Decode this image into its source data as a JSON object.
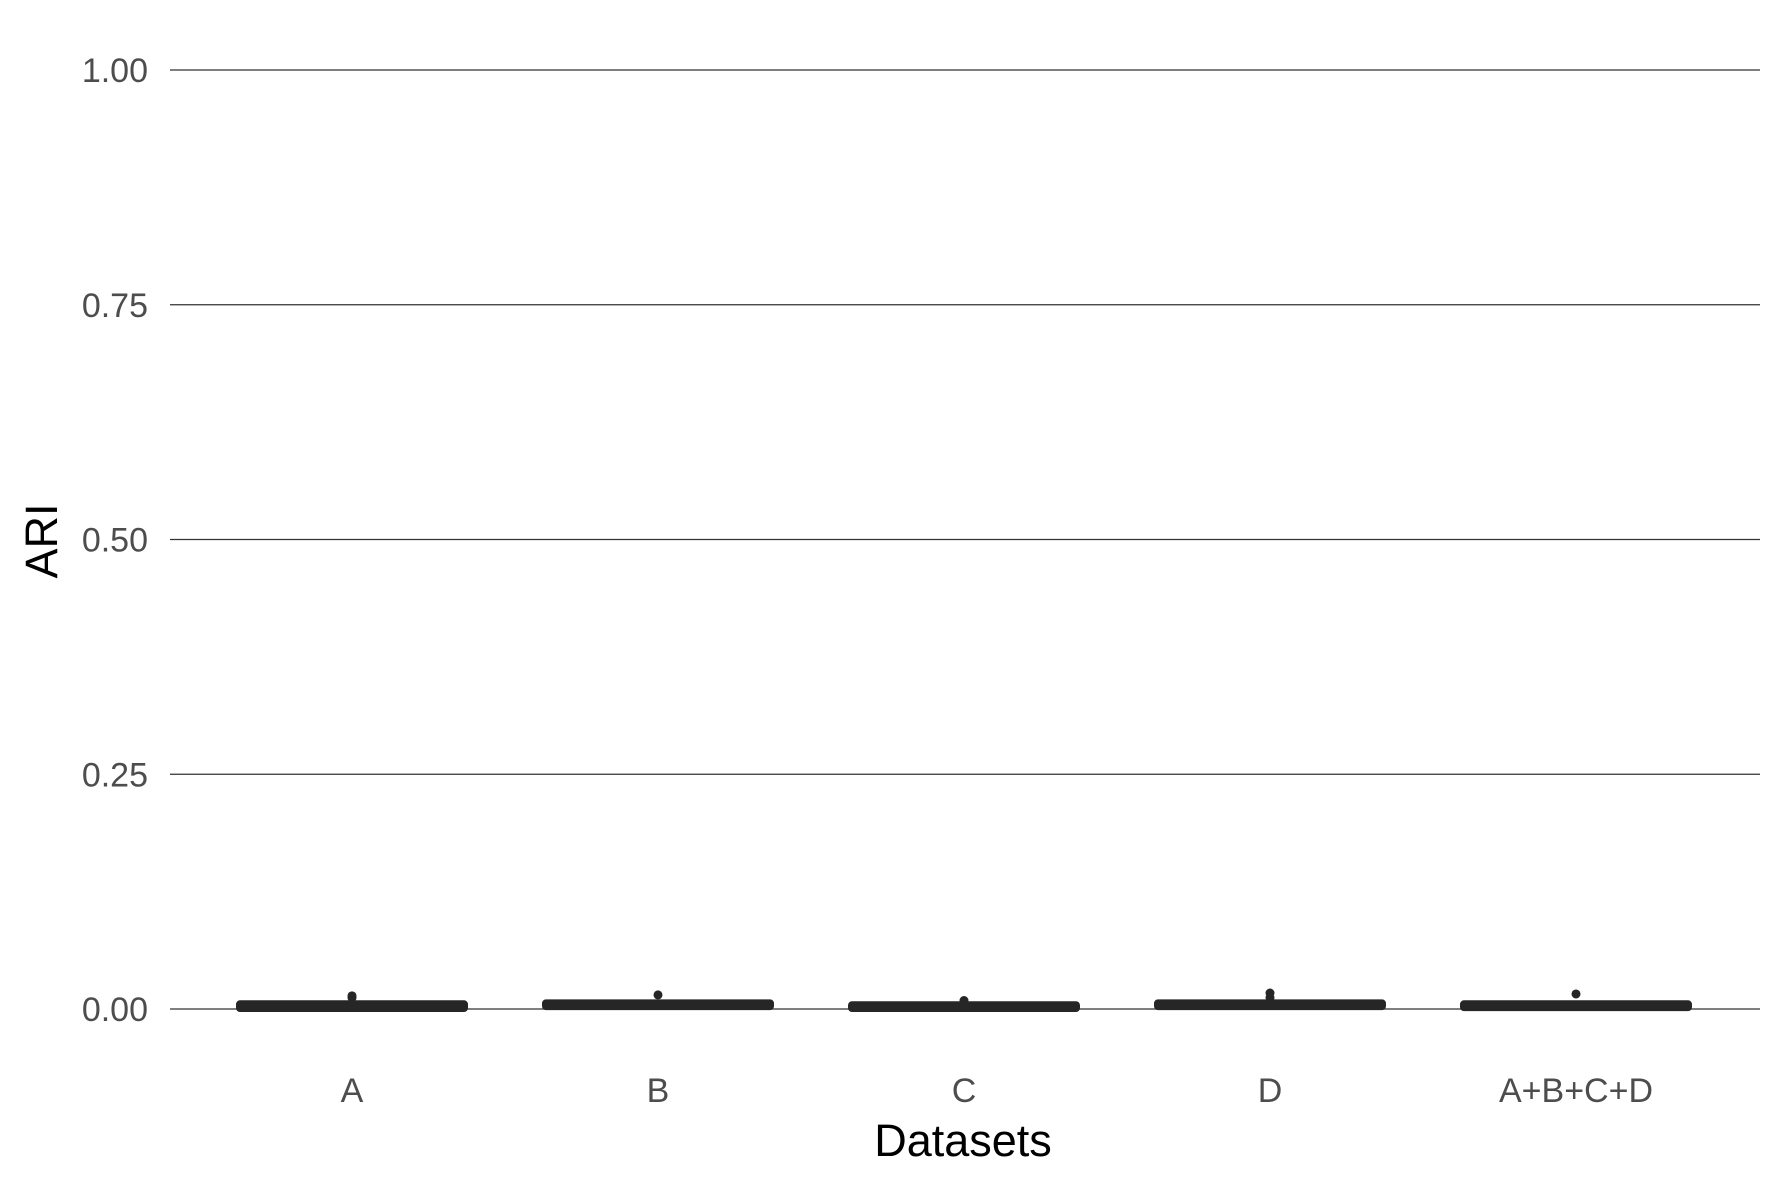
{
  "chart_data": {
    "type": "box",
    "xlabel": "Datasets",
    "ylabel": "ARI",
    "ylim": [
      0,
      1
    ],
    "yticks": [
      "0.00",
      "0.25",
      "0.50",
      "0.75",
      "1.00"
    ],
    "ytick_values": [
      0,
      0.25,
      0.5,
      0.75,
      1.0
    ],
    "categories": [
      "A",
      "B",
      "C",
      "D",
      "A+B+C+D"
    ],
    "boxes": [
      {
        "category": "A",
        "min": 0.0,
        "q1": 0.001,
        "median": 0.003,
        "q3": 0.005,
        "max": 0.007,
        "outliers": [
          0.012,
          0.014
        ]
      },
      {
        "category": "B",
        "min": 0.002,
        "q1": 0.003,
        "median": 0.004,
        "q3": 0.006,
        "max": 0.008,
        "outliers": [
          0.015
        ]
      },
      {
        "category": "C",
        "min": 0.0,
        "q1": 0.001,
        "median": 0.002,
        "q3": 0.004,
        "max": 0.005,
        "outliers": [
          0.009
        ]
      },
      {
        "category": "D",
        "min": 0.002,
        "q1": 0.003,
        "median": 0.004,
        "q3": 0.006,
        "max": 0.008,
        "outliers": [
          0.012,
          0.017
        ]
      },
      {
        "category": "A+B+C+D",
        "min": 0.001,
        "q1": 0.002,
        "median": 0.004,
        "q3": 0.005,
        "max": 0.007,
        "outliers": [
          0.016
        ]
      }
    ],
    "grid": true,
    "colors": {
      "box": "#262626",
      "grid": "#333333",
      "tick_text": "#4d4d4d",
      "title_text": "#000000"
    }
  }
}
